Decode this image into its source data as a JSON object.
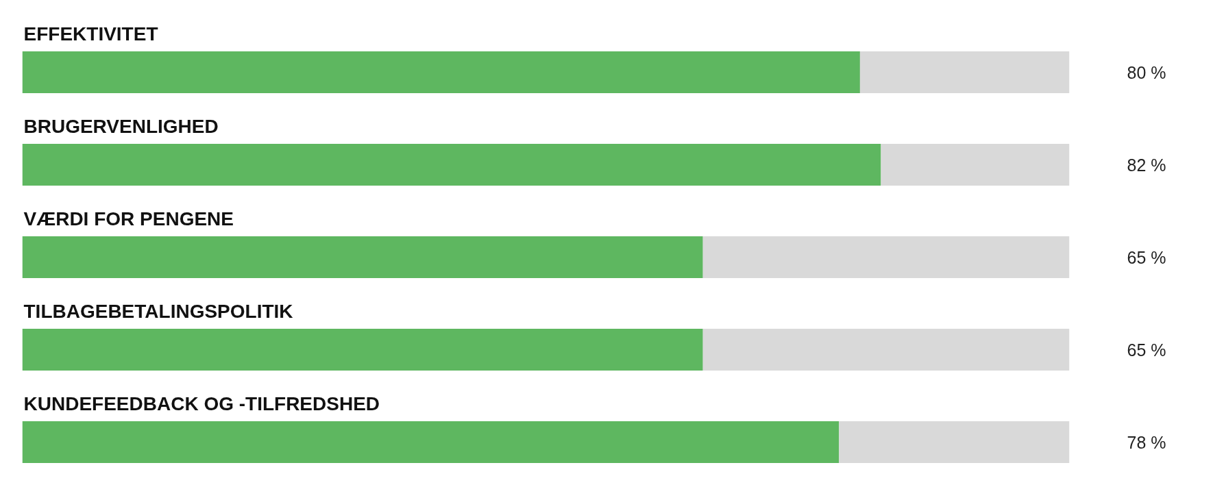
{
  "chart_data": {
    "type": "bar",
    "orientation": "horizontal",
    "stacked": true,
    "xlim": [
      0,
      100
    ],
    "tick_labels": false,
    "grid": false,
    "categories": [
      "EFFEKTIVITET",
      "BRUGERVENLIGHED",
      "VÆRDI FOR PENGENE",
      "TILBAGEBETALINGSPOLITIK",
      "KUNDEFEEDBACK OG -TILFREDSHED"
    ],
    "series": [
      {
        "color": "#5eb760",
        "values": [
          80,
          82,
          65,
          65,
          78
        ],
        "value_labels": [
          "80 %",
          "82 %",
          "65 %",
          "65 %",
          "78 %"
        ]
      },
      {
        "color": "#d9d9d9",
        "values": [
          20,
          18,
          35,
          35,
          22
        ]
      }
    ]
  }
}
